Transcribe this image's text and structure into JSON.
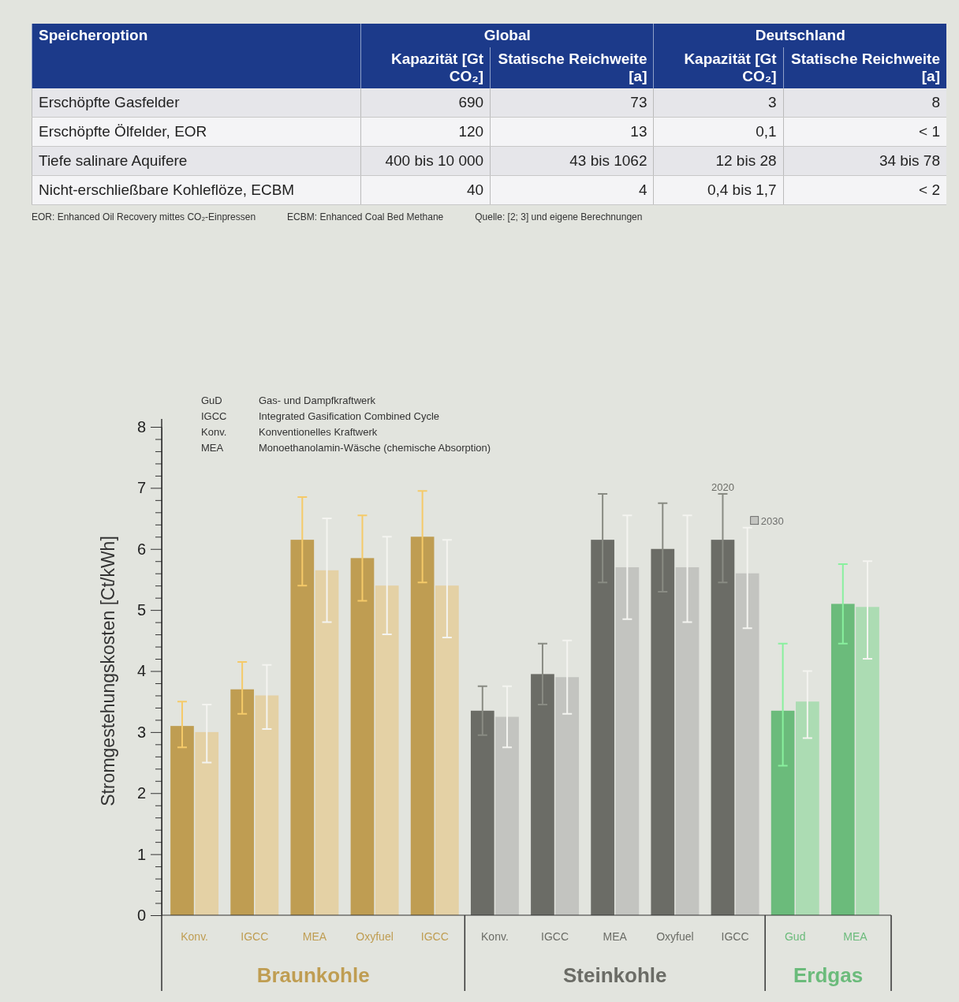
{
  "chart_data": [
    {
      "type": "other",
      "ylabel": "Speicheroption",
      "categories": [
        "Kapazität [Gt CO₂]",
        "Statische Reichweite [a]",
        "Kapazität [Gt CO₂]",
        "Statische Reichweite [a]"
      ],
      "y_categories": [
        "Erschöpfte Gasfelder",
        "Erschöpfte Ölfelder, EOR",
        "Tiefe salinare Aquifere",
        "Nicht-erschließbare Kohleflöze, ECBM"
      ],
      "cell_labels": [
        [
          "690",
          "73",
          "3",
          "8"
        ],
        [
          "120",
          "13",
          "0,1",
          "< 1"
        ],
        [
          "400 bis 10 000",
          "43 bis 1062",
          "12 bis 28",
          "34 bis 78"
        ],
        [
          "40",
          "4",
          "0,4 bis 1,7",
          "< 2"
        ]
      ],
      "annotations": [
        "Global",
        "Deutschland",
        "EOR: Enhanced Oil Recovery mittes CO₂-Einpressen",
        "ECBM: Enhanced Coal Bed Methane",
        "Quelle: [2; 3] und eigene Berechnungen"
      ]
    },
    {
      "type": "bar",
      "ylabel": "Stromgestehungskosten [Ct/kWh]",
      "categories": [
        "Konv.",
        "IGCC",
        "MEA",
        "Oxyfuel",
        "IGCC",
        "Konv.",
        "IGCC",
        "MEA",
        "Oxyfuel",
        "IGCC",
        "Gud",
        "MEA"
      ],
      "series": [
        {
          "name": "2020",
          "colors": [
            "#bf9d52",
            "#bf9d52",
            "#bf9d52",
            "#bf9d52",
            "#bf9d52",
            "#6b6c66",
            "#6b6c66",
            "#6b6c66",
            "#6b6c66",
            "#6b6c66",
            "#6bbb7b",
            "#6bbb7b"
          ],
          "values": [
            3.1,
            3.7,
            6.15,
            5.85,
            6.2,
            3.35,
            3.95,
            6.15,
            6.0,
            6.15,
            3.35,
            5.1
          ],
          "errors": [
            [
              2.75,
              3.5
            ],
            [
              3.3,
              4.15
            ],
            [
              5.4,
              6.85
            ],
            [
              5.15,
              6.55
            ],
            [
              5.45,
              6.95
            ],
            [
              2.95,
              3.75
            ],
            [
              3.45,
              4.45
            ],
            [
              5.45,
              6.9
            ],
            [
              5.3,
              6.75
            ],
            [
              5.45,
              6.9
            ],
            [
              2.45,
              4.45
            ],
            [
              4.45,
              5.75
            ]
          ]
        },
        {
          "name": "2030",
          "colors": [
            "#e4d1a5",
            "#e4d1a5",
            "#e4d1a5",
            "#e4d1a5",
            "#e4d1a5",
            "#c3c4c0",
            "#c3c4c0",
            "#c3c4c0",
            "#c3c4c0",
            "#c3c4c0",
            "#acdcb3",
            "#acdcb3"
          ],
          "values": [
            3.0,
            3.6,
            5.65,
            5.4,
            5.4,
            3.25,
            3.9,
            5.7,
            5.7,
            5.6,
            3.5,
            5.05
          ],
          "errors": [
            [
              2.5,
              3.45
            ],
            [
              3.05,
              4.1
            ],
            [
              4.8,
              6.5
            ],
            [
              4.6,
              6.2
            ],
            [
              4.55,
              6.15
            ],
            [
              2.75,
              3.75
            ],
            [
              3.3,
              4.5
            ],
            [
              4.85,
              6.55
            ],
            [
              4.8,
              6.55
            ],
            [
              4.7,
              6.35
            ],
            [
              2.9,
              4.0
            ],
            [
              4.2,
              5.8
            ]
          ]
        }
      ],
      "ylim": [
        0,
        8
      ],
      "yticks": [
        0,
        {
          "value": 0.2,
          "label": null
        },
        {
          "value": 0.4,
          "label": null
        },
        {
          "value": 0.6,
          "label": null
        },
        {
          "value": 0.8,
          "label": null
        },
        1,
        {
          "value": 1.2,
          "label": null
        },
        {
          "value": 1.4,
          "label": null
        },
        {
          "value": 1.6,
          "label": null
        },
        {
          "value": 1.8,
          "label": null
        },
        2,
        {
          "value": 2.2,
          "label": null
        },
        {
          "value": 2.4,
          "label": null
        },
        {
          "value": 2.6,
          "label": null
        },
        {
          "value": 2.8,
          "label": null
        },
        3,
        {
          "value": 3.2,
          "label": null
        },
        {
          "value": 3.4,
          "label": null
        },
        {
          "value": 3.6,
          "label": null
        },
        {
          "value": 3.8,
          "label": null
        },
        4,
        {
          "value": 4.2,
          "label": null
        },
        {
          "value": 4.4,
          "label": null
        },
        {
          "value": 4.6,
          "label": null
        },
        {
          "value": 4.8,
          "label": null
        },
        5,
        {
          "value": 5.2,
          "label": null
        },
        {
          "value": 5.4,
          "label": null
        },
        {
          "value": 5.6,
          "label": null
        },
        {
          "value": 5.8,
          "label": null
        },
        6,
        {
          "value": 6.2,
          "label": null
        },
        {
          "value": 6.4,
          "label": null
        },
        {
          "value": 6.6,
          "label": null
        },
        {
          "value": 6.8,
          "label": null
        },
        7,
        {
          "value": 7.2,
          "label": null
        },
        {
          "value": 7.4,
          "label": null
        },
        {
          "value": 7.6,
          "label": null
        },
        {
          "value": 7.8,
          "label": null
        },
        8
      ],
      "annotations": [
        "Braunkohle",
        "Steinkohle",
        "Erdgas",
        "GuD",
        "Gas- und Dampfkraftwerk",
        "IGCC",
        "Integrated Gasification Combined Cycle",
        "Konv.",
        "Konventionelles Kraftwerk",
        "MEA",
        "Monoethanolamin-Wäsche (chemische Absorption)"
      ]
    }
  ]
}
